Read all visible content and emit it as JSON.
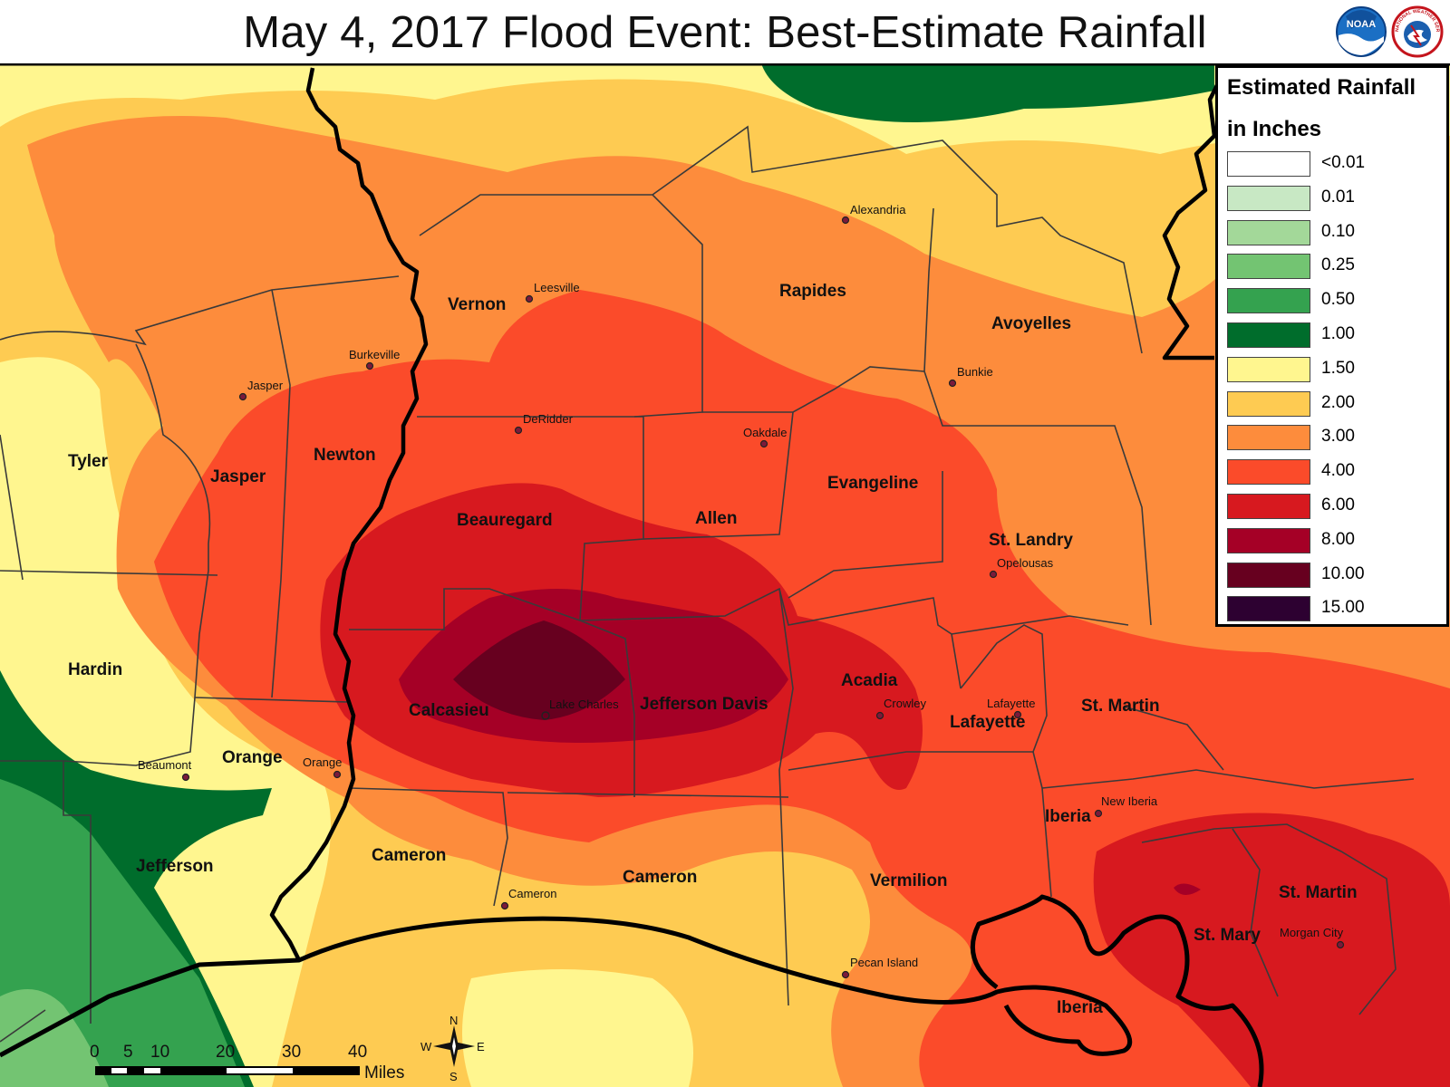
{
  "title": "May 4, 2017 Flood Event: Best-Estimate Rainfall",
  "logos": {
    "noaa": "NOAA",
    "nws": "NATIONAL WEATHER SERVICE"
  },
  "legend": {
    "title_line1": "Estimated Rainfall",
    "title_line2": "in Inches",
    "items": [
      {
        "label": "<0.01",
        "color": "#ffffff"
      },
      {
        "label": "0.01",
        "color": "#c8e8c4"
      },
      {
        "label": "0.10",
        "color": "#a3d899"
      },
      {
        "label": "0.25",
        "color": "#73c472"
      },
      {
        "label": "0.50",
        "color": "#34a24f"
      },
      {
        "label": "1.00",
        "color": "#006d2c"
      },
      {
        "label": "1.50",
        "color": "#fff68f"
      },
      {
        "label": "2.00",
        "color": "#fecb52"
      },
      {
        "label": "3.00",
        "color": "#fd8c3c"
      },
      {
        "label": "4.00",
        "color": "#fb4b2a"
      },
      {
        "label": "6.00",
        "color": "#d7191f"
      },
      {
        "label": "8.00",
        "color": "#a50026"
      },
      {
        "label": "10.00",
        "color": "#67001f"
      },
      {
        "label": "15.00",
        "color": "#2d0131"
      }
    ]
  },
  "counties": [
    {
      "name": "Tyler"
    },
    {
      "name": "Jasper"
    },
    {
      "name": "Newton"
    },
    {
      "name": "Vernon"
    },
    {
      "name": "Rapides"
    },
    {
      "name": "Avoyelles"
    },
    {
      "name": "Beauregard"
    },
    {
      "name": "Allen"
    },
    {
      "name": "Evangeline"
    },
    {
      "name": "St. Landry"
    },
    {
      "name": "Hardin"
    },
    {
      "name": "Calcasieu"
    },
    {
      "name": "Jefferson Davis"
    },
    {
      "name": "Acadia"
    },
    {
      "name": "Lafayette"
    },
    {
      "name": "St. Martin"
    },
    {
      "name": "Orange"
    },
    {
      "name": "Jefferson"
    },
    {
      "name": "Cameron"
    },
    {
      "name": "Cameron"
    },
    {
      "name": "Vermilion"
    },
    {
      "name": "Iberia"
    },
    {
      "name": "St. Martin"
    },
    {
      "name": "St. Mary"
    },
    {
      "name": "Iberia"
    }
  ],
  "cities": [
    {
      "name": "Alexandria"
    },
    {
      "name": "Leesville"
    },
    {
      "name": "Burkeville"
    },
    {
      "name": "Jasper"
    },
    {
      "name": "Bunkie"
    },
    {
      "name": "DeRidder"
    },
    {
      "name": "Oakdale"
    },
    {
      "name": "Opelousas"
    },
    {
      "name": "Lake Charles"
    },
    {
      "name": "Crowley"
    },
    {
      "name": "Lafayette"
    },
    {
      "name": "Beaumont"
    },
    {
      "name": "Orange"
    },
    {
      "name": "New Iberia"
    },
    {
      "name": "Cameron"
    },
    {
      "name": "Morgan City"
    },
    {
      "name": "Pecan Island"
    }
  ],
  "scalebar": {
    "ticks": [
      "0",
      "5",
      "10",
      "20",
      "30",
      "40"
    ],
    "unit": "Miles"
  },
  "compass": {
    "n": "N",
    "s": "S",
    "e": "E",
    "w": "W"
  }
}
